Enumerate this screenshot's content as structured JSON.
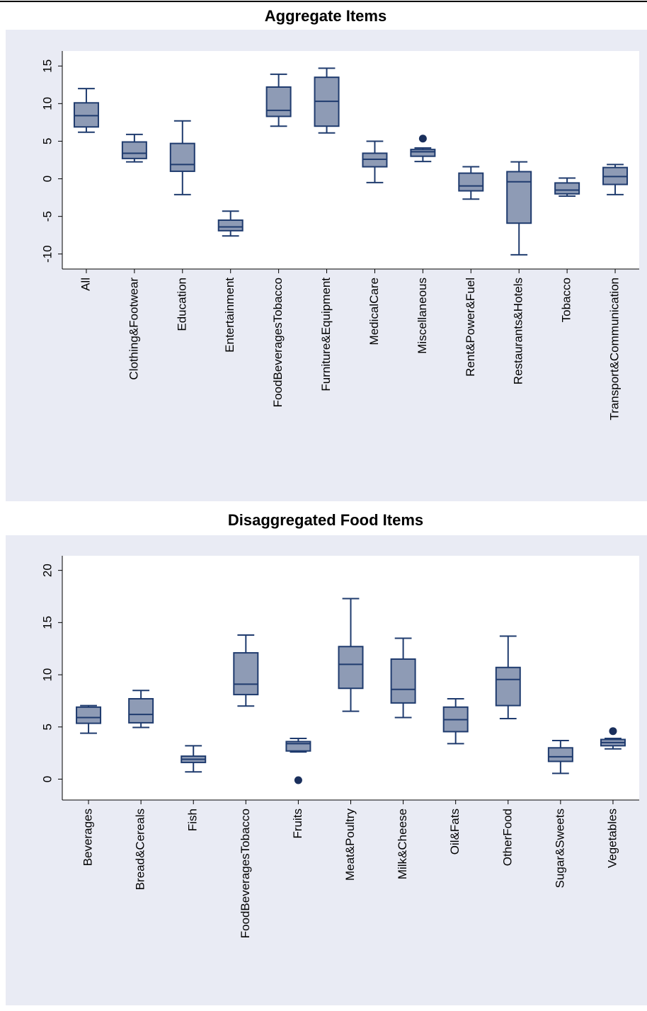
{
  "chart_data": [
    {
      "type": "box",
      "title": "Aggregate Items",
      "categories": [
        "All",
        "Clothing&Footwear",
        "Education",
        "Entertainment",
        "FoodBeveragesTobacco",
        "Furniture&Equipment",
        "MedicalCare",
        "Miscellaneous",
        "Rent&Power&Fuel",
        "Restaurants&Hotels",
        "Tobacco",
        "Transport&Communication"
      ],
      "whislo": [
        6.2,
        2.25,
        -2.1,
        -7.6,
        7.0,
        6.1,
        -0.5,
        2.3,
        -2.7,
        -10.1,
        -2.3,
        -2.1
      ],
      "q1": [
        6.9,
        2.7,
        1.0,
        -6.9,
        8.3,
        7.0,
        1.6,
        3.0,
        -1.6,
        -5.9,
        -2.0,
        -0.75
      ],
      "med": [
        8.4,
        3.4,
        1.9,
        -6.4,
        9.1,
        10.3,
        2.6,
        3.6,
        -0.95,
        -0.4,
        -1.5,
        0.3
      ],
      "q3": [
        10.1,
        4.9,
        4.7,
        -5.5,
        12.2,
        13.5,
        3.4,
        3.9,
        0.75,
        0.95,
        -0.55,
        1.5
      ],
      "whishi": [
        12.0,
        5.9,
        7.7,
        -4.3,
        13.9,
        14.7,
        5.0,
        4.1,
        1.6,
        2.25,
        0.1,
        1.9
      ],
      "outliers": [
        [],
        [],
        [],
        [],
        [],
        [],
        [],
        [
          5.35
        ],
        [],
        [],
        [],
        []
      ],
      "color": "#8e9bb5",
      "line_color": "#1f3b6e",
      "outlier_color": "#1a2f5c",
      "ylim": [
        -12,
        17
      ],
      "yticks": [
        -10,
        -5,
        0,
        5,
        10,
        15
      ],
      "grid": false
    },
    {
      "type": "box",
      "title": "Disaggregated Food Items",
      "categories": [
        "Beverages",
        "Bread&Cereals",
        "Fish",
        "FoodBeveragesTobacco",
        "Fruits",
        "Meat&Poultry",
        "Milk&Cheese",
        "Oil&Fats",
        "OtherFood",
        "Sugar&Sweets",
        "Vegetables"
      ],
      "whislo": [
        4.4,
        4.95,
        0.7,
        7.0,
        2.6,
        6.5,
        5.9,
        3.4,
        5.8,
        0.55,
        2.9
      ],
      "q1": [
        5.35,
        5.4,
        1.6,
        8.1,
        2.7,
        8.7,
        7.3,
        4.55,
        7.05,
        1.7,
        3.2
      ],
      "med": [
        5.9,
        6.2,
        1.9,
        9.1,
        3.4,
        11.0,
        8.6,
        5.7,
        9.55,
        2.15,
        3.5
      ],
      "q3": [
        6.9,
        7.7,
        2.2,
        12.1,
        3.6,
        12.7,
        11.5,
        6.9,
        10.7,
        3.0,
        3.8
      ],
      "whishi": [
        7.05,
        8.5,
        3.2,
        13.8,
        3.9,
        17.3,
        13.5,
        7.7,
        13.7,
        3.7,
        3.9
      ],
      "outliers": [
        [],
        [],
        [],
        [],
        [
          -0.1
        ],
        [],
        [],
        [],
        [],
        [],
        [
          4.6
        ]
      ],
      "color": "#8e9bb5",
      "line_color": "#1f3b6e",
      "outlier_color": "#1a2f5c",
      "ylim": [
        -2,
        21.4
      ],
      "yticks": [
        0,
        5,
        10,
        15,
        20
      ],
      "grid": false
    }
  ]
}
